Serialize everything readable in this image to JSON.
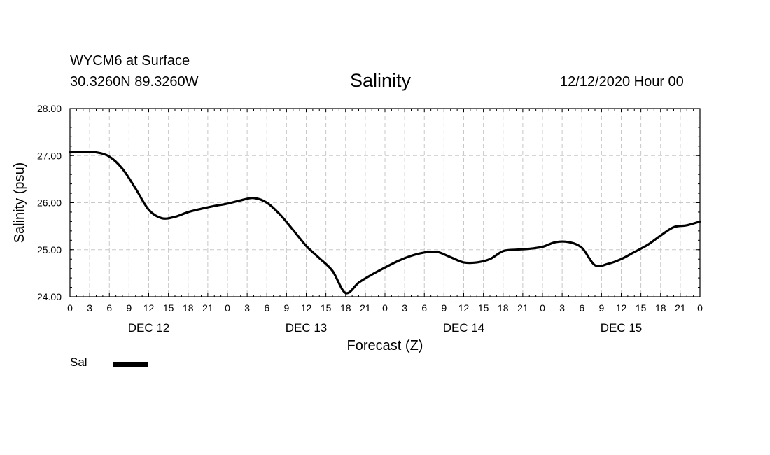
{
  "header": {
    "station": "WYCM6 at Surface",
    "coords": "30.3260N 89.3260W",
    "title": "Salinity",
    "issued": "12/12/2020 Hour 00"
  },
  "legend": {
    "label": "Sal",
    "color": "#000000"
  },
  "chart_data": {
    "type": "line",
    "title": "Salinity",
    "xlabel": "Forecast (Z)",
    "ylabel": "Salinity (psu)",
    "ylim": [
      24,
      28
    ],
    "yticks": [
      "24.00",
      "25.00",
      "26.00",
      "27.00",
      "28.00"
    ],
    "xlim": [
      0,
      96
    ],
    "x_tick_step_hours": 3,
    "x_tick_labels": [
      "0",
      "3",
      "6",
      "9",
      "12",
      "15",
      "18",
      "21",
      "0",
      "3",
      "6",
      "9",
      "12",
      "15",
      "18",
      "21",
      "0",
      "3",
      "6",
      "9",
      "12",
      "15",
      "18",
      "21",
      "0",
      "3",
      "6",
      "9",
      "12",
      "15",
      "18",
      "21",
      "0"
    ],
    "day_labels": [
      "DEC 12",
      "DEC 13",
      "DEC 14",
      "DEC 15"
    ],
    "grid": true,
    "series": [
      {
        "name": "Sal",
        "x": [
          0,
          2,
          4,
          6,
          8,
          10,
          12,
          14,
          16,
          18,
          20,
          22,
          24,
          26,
          28,
          30,
          32,
          34,
          36,
          38,
          40,
          42,
          44,
          46,
          48,
          50,
          52,
          54,
          56,
          58,
          60,
          62,
          64,
          66,
          68,
          70,
          72,
          74,
          76,
          78,
          80,
          82,
          84,
          86,
          88,
          90,
          92,
          94,
          96
        ],
        "values": [
          27.07,
          27.08,
          27.07,
          26.98,
          26.72,
          26.3,
          25.85,
          25.67,
          25.7,
          25.8,
          25.87,
          25.93,
          25.98,
          26.05,
          26.1,
          26.0,
          25.75,
          25.42,
          25.08,
          24.82,
          24.55,
          24.08,
          24.3,
          24.47,
          24.62,
          24.76,
          24.87,
          24.94,
          24.95,
          24.84,
          24.73,
          24.73,
          24.8,
          24.97,
          25.0,
          25.02,
          25.06,
          25.16,
          25.16,
          25.04,
          24.67,
          24.7,
          24.8,
          24.95,
          25.1,
          25.3,
          25.48,
          25.52,
          25.6
        ]
      }
    ]
  }
}
